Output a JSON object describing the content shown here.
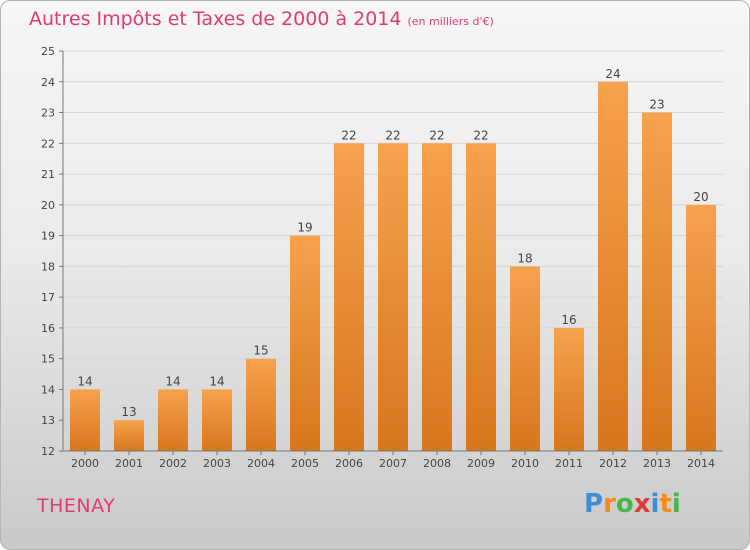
{
  "chart_data": {
    "type": "bar",
    "title": "Autres Impôts et Taxes de 2000 à 2014",
    "subtitle": "(en milliers d'€)",
    "categories": [
      "2000",
      "2001",
      "2002",
      "2003",
      "2004",
      "2005",
      "2006",
      "2007",
      "2008",
      "2009",
      "2010",
      "2011",
      "2012",
      "2013",
      "2014"
    ],
    "values": [
      14,
      13,
      14,
      14,
      15,
      19,
      22,
      22,
      22,
      22,
      18,
      16,
      24,
      23,
      20
    ],
    "data_labels": [
      "14",
      "13",
      "14",
      "14",
      "15",
      "19",
      "22",
      "22",
      "22",
      "22",
      "18",
      "16",
      "24",
      "23",
      "20"
    ],
    "ylim": [
      12,
      25
    ],
    "yticks": [
      12,
      13,
      14,
      15,
      16,
      17,
      18,
      19,
      20,
      21,
      22,
      23,
      24,
      25
    ],
    "grid": true,
    "bar_color_top": "#f7a24c",
    "bar_color_bottom": "#d8761d",
    "title_color": "#e03c73"
  },
  "location": "THENAY",
  "logo": {
    "letters": [
      "P",
      "r",
      "o",
      "x",
      "i",
      "t",
      "i"
    ],
    "colors": [
      "#3b8fd4",
      "#f28c1c",
      "#49b649",
      "#e53935",
      "#3b8fd4",
      "#f28c1c",
      "#49b649"
    ]
  }
}
